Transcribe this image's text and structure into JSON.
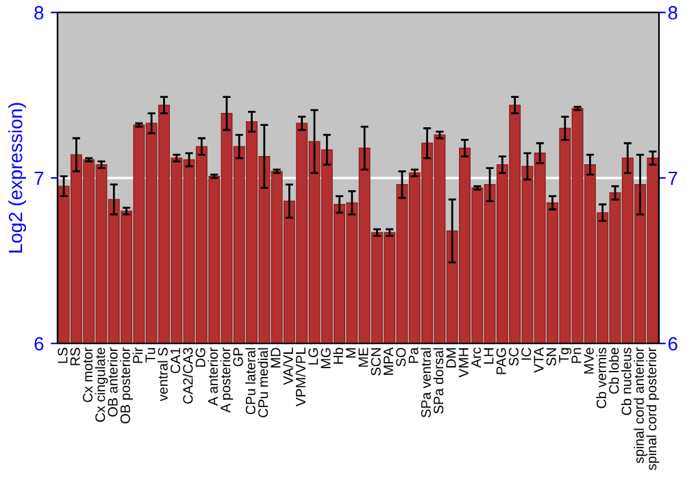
{
  "chart_data": {
    "type": "bar",
    "ylabel": "Log2 (expression)",
    "categories": [
      "LS",
      "RS",
      "Cx motor",
      "Cx cingulate",
      "OB anterior",
      "OB posterior",
      "Pir",
      "Tu",
      "ventral S",
      "CA1",
      "CA2/CA3",
      "DG",
      "A anterior",
      "A posterior",
      "GP",
      "CPu lateral",
      "CPu medial",
      "MD",
      "VA/VL",
      "VPM/VPL",
      "LG",
      "MG",
      "Hb",
      "M",
      "ME",
      "SCN",
      "MPA",
      "SO",
      "Pa",
      "SPa ventral",
      "SPa dorsal",
      "DM",
      "VMH",
      "Arc",
      "LH",
      "PAG",
      "SC",
      "IC",
      "VTA",
      "SN",
      "Tg",
      "Pn",
      "MVe",
      "Cb vermis",
      "Cb lobe",
      "Cb nucleus",
      "spinal cord anterior",
      "spinal cord posterior"
    ],
    "values": [
      6.95,
      7.14,
      7.11,
      7.08,
      6.87,
      6.8,
      7.32,
      7.33,
      7.44,
      7.12,
      7.11,
      7.19,
      7.01,
      7.39,
      7.19,
      7.34,
      7.13,
      7.04,
      6.86,
      7.33,
      7.22,
      7.17,
      6.84,
      6.85,
      7.18,
      6.67,
      6.67,
      6.96,
      7.03,
      7.21,
      7.26,
      6.68,
      7.18,
      6.94,
      6.96,
      7.08,
      7.44,
      7.07,
      7.15,
      6.85,
      7.3,
      7.42,
      7.08,
      6.79,
      6.91,
      7.12,
      6.96,
      7.12
    ],
    "errors": [
      0.06,
      0.1,
      0.01,
      0.02,
      0.09,
      0.02,
      0.01,
      0.06,
      0.05,
      0.02,
      0.04,
      0.05,
      0.01,
      0.1,
      0.07,
      0.06,
      0.19,
      0.01,
      0.1,
      0.04,
      0.19,
      0.09,
      0.05,
      0.07,
      0.13,
      0.02,
      0.02,
      0.08,
      0.02,
      0.09,
      0.02,
      0.19,
      0.05,
      0.01,
      0.1,
      0.05,
      0.05,
      0.08,
      0.06,
      0.04,
      0.07,
      0.01,
      0.06,
      0.05,
      0.04,
      0.09,
      0.18,
      0.04
    ],
    "color": "#b33030",
    "ylim": [
      6,
      8
    ],
    "yticks": [
      6,
      7,
      8
    ],
    "y2lim": [
      6,
      8
    ],
    "y2ticks": [
      6,
      7,
      8
    ],
    "grid": "y"
  }
}
